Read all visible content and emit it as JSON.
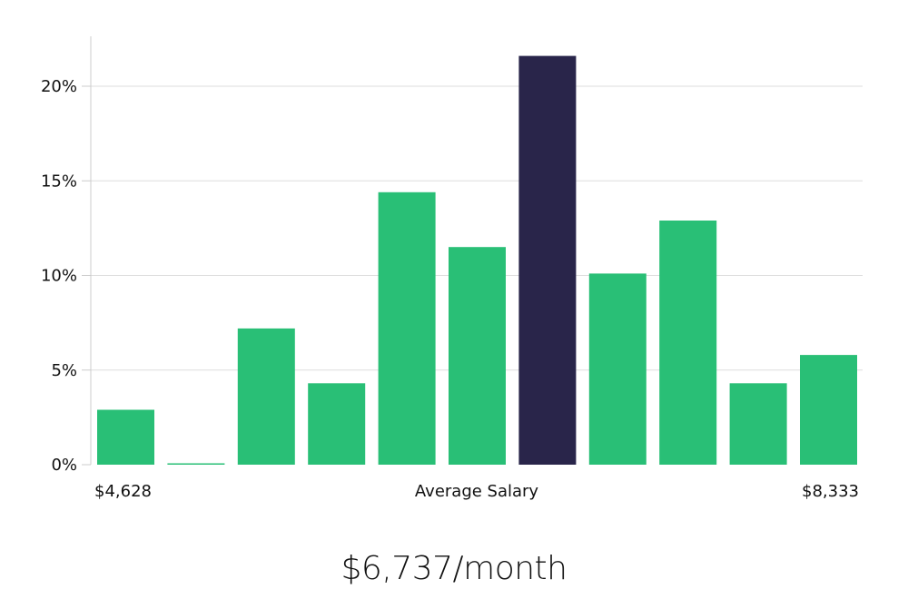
{
  "chart_data": {
    "type": "bar",
    "title": "",
    "xlabel": "Average Salary",
    "ylabel": "",
    "x_range_labels": {
      "min": "$4,628",
      "max": "$8,333"
    },
    "values": [
      2.9,
      0.05,
      7.2,
      4.3,
      14.4,
      11.5,
      21.6,
      10.1,
      12.9,
      4.3,
      5.8
    ],
    "highlight_index": 6,
    "ylim": [
      0,
      22.5
    ],
    "yticks": [
      0,
      5,
      10,
      15,
      20
    ],
    "ytick_labels": [
      "0%",
      "5%",
      "10%",
      "15%",
      "20%"
    ],
    "grid": true,
    "colors": {
      "bar": "#29bf76",
      "highlight": "#29254a",
      "grid": "#dddddd",
      "axis": "#cccccc"
    }
  },
  "summary": {
    "salary_text": "$6,737/month"
  }
}
